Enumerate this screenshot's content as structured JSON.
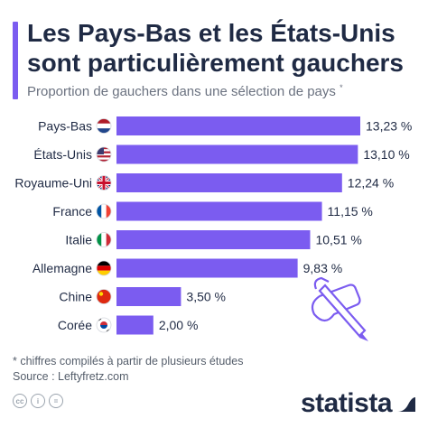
{
  "header": {
    "title": "Les Pays-Bas et les États-Unis sont particulièrement gauchers",
    "subtitle": "Proportion de gauchers dans une sélection de pays",
    "subtitle_mark": "*"
  },
  "footnote": {
    "note": "* chiffres compilés à partir de plusieurs études",
    "source": "Source : Leftyfretz.com"
  },
  "brand": {
    "logo_text": "statista",
    "accent_color": "#7b5cf0"
  },
  "chart_data": {
    "type": "bar",
    "orientation": "horizontal",
    "categories": [
      "Pays-Bas",
      "États-Unis",
      "Royaume-Uni",
      "France",
      "Italie",
      "Allemagne",
      "Chine",
      "Corée"
    ],
    "values": [
      13.23,
      13.1,
      12.24,
      11.15,
      10.51,
      9.83,
      3.5,
      2.0
    ],
    "value_labels": [
      "13,23 %",
      "13,10 %",
      "12,24 %",
      "11,15 %",
      "10,51 %",
      "9,83 %",
      "3,50 %",
      "2,00 %"
    ],
    "flag_icons": [
      "flag-netherlands-icon",
      "flag-usa-icon",
      "flag-uk-icon",
      "flag-france-icon",
      "flag-italy-icon",
      "flag-germany-icon",
      "flag-china-icon",
      "flag-korea-icon"
    ],
    "xlim": [
      0,
      13.23
    ],
    "bar_color": "#7b5cf0",
    "grid": false,
    "legend": "none"
  }
}
